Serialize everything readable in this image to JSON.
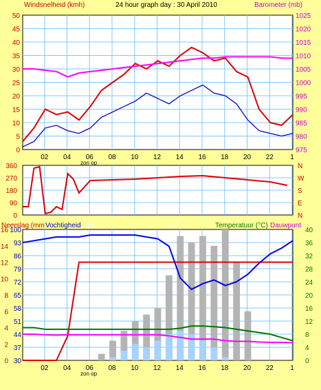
{
  "colors": {
    "background": "#ffff99",
    "plot": "#ffffff",
    "grid": "#7fc8ff",
    "wind_gust": "#dd0000",
    "wind_avg": "#0000cc",
    "barometer": "#ff00ff",
    "direction": "#dd0000",
    "humidity": "#0000ee",
    "rain": "#dd0000",
    "solar": "#b4b4b4",
    "uv": "#a6d2ff",
    "temperature": "#007700",
    "dewpoint": "#ff00ff",
    "label_red": "#cc0000",
    "label_blue": "#0000cc",
    "label_magenta": "#cc00cc",
    "label_green": "#007700"
  },
  "header": {
    "left": "Windsnelheid (kmh)",
    "title": "24 hour graph day : 30 April 2010",
    "right": "Barometer (mb)"
  },
  "sunrise_label": "zon op",
  "x_ticks": [
    "02",
    "04",
    "06",
    "08",
    "10",
    "12",
    "14",
    "16",
    "18",
    "20",
    "22",
    "1"
  ],
  "top_chart": {
    "y_left_ticks": [
      "50",
      "45",
      "40",
      "35",
      "30",
      "25",
      "20",
      "15",
      "10",
      "5",
      "0"
    ],
    "y_right_ticks": [
      "1025",
      "1020",
      "1015",
      "1010",
      "1005",
      "1000",
      "995",
      "990",
      "985",
      "980",
      "975"
    ]
  },
  "mid_chart": {
    "y_left_ticks": [
      "360",
      "270",
      "180",
      "90",
      "0"
    ],
    "y_right_ticks": [
      "N",
      "W",
      "S",
      "E",
      "N"
    ]
  },
  "bottom_chart": {
    "header_left": "Neerslag (mm",
    "header_humidity": "Vochtigheid",
    "header_solar": "olar",
    "header_uv": "UV",
    "header_temp": "Temperatuur (°C)",
    "header_dew": "Dauwpunt",
    "y_left_rain_ticks": [
      "16",
      "14",
      "12",
      "10",
      "8",
      "6",
      "4",
      "2",
      "0"
    ],
    "y_left_hum_ticks": [
      "100",
      "93",
      "86",
      "79",
      "72",
      "65",
      "58",
      "51",
      "44",
      "37",
      "30"
    ],
    "y_right_ticks": [
      "40",
      "36",
      "32",
      "28",
      "24",
      "20",
      "16",
      "12",
      "8",
      "4",
      "0"
    ]
  },
  "chart_data": [
    {
      "type": "line",
      "title": "24 hour graph day : 30 April 2010",
      "xlabel": "zon op",
      "ylabel": "Windsnelheid (kmh)",
      "ylabel_right": "Barometer (mb)",
      "x": [
        0,
        1,
        2,
        3,
        4,
        5,
        6,
        7,
        8,
        9,
        10,
        11,
        12,
        13,
        14,
        15,
        16,
        17,
        18,
        19,
        20,
        21,
        22,
        23,
        24
      ],
      "ylim": [
        0,
        50
      ],
      "ylim_right": [
        975,
        1025
      ],
      "series": [
        {
          "values": [
            3,
            8,
            15,
            13,
            14,
            11,
            16,
            22,
            25,
            28,
            32,
            30,
            33,
            31,
            35,
            38,
            36,
            33,
            34,
            29,
            27,
            15,
            10,
            9,
            13
          ]
        },
        {
          "values": [
            1,
            3,
            8,
            9,
            7,
            6,
            8,
            12,
            14,
            16,
            18,
            21,
            19,
            17,
            20,
            22,
            24,
            21,
            20,
            17,
            11,
            7,
            6,
            5,
            6
          ]
        },
        {
          "axis": "right",
          "values": [
            1005,
            1005,
            1004.5,
            1004,
            1002,
            1003.5,
            1004,
            1004.5,
            1005,
            1005.5,
            1006,
            1006.5,
            1007,
            1007.5,
            1008,
            1008.5,
            1009,
            1009,
            1009.5,
            1009.5,
            1009.5,
            1009.5,
            1009.5,
            1009,
            1009
          ]
        }
      ]
    },
    {
      "type": "line",
      "ylim": [
        0,
        360
      ],
      "x": [
        0,
        0.5,
        1,
        1.5,
        2,
        2.5,
        3,
        3.5,
        4,
        4.5,
        5,
        6,
        8,
        10,
        12,
        14,
        16,
        18,
        20,
        22,
        23.5
      ],
      "series": [
        {
          "values": [
            60,
            60,
            340,
            350,
            10,
            20,
            60,
            40,
            300,
            260,
            160,
            250,
            255,
            260,
            270,
            280,
            285,
            270,
            255,
            240,
            215
          ]
        }
      ]
    },
    {
      "type": "line",
      "x": [
        0,
        1,
        2,
        3,
        4,
        5,
        6,
        7,
        8,
        9,
        10,
        11,
        12,
        13,
        14,
        15,
        16,
        17,
        18,
        19,
        20,
        21,
        22,
        23,
        24
      ],
      "ylim": [
        30,
        100
      ],
      "ylim_right": [
        0,
        40
      ],
      "series": [
        {
          "values": [
            93,
            94,
            95,
            96,
            96,
            96,
            97,
            97,
            97,
            97,
            97,
            96,
            95,
            91,
            74,
            68,
            71,
            73,
            70,
            72,
            76,
            82,
            87,
            90,
            94
          ]
        },
        {
          "axis": "rain_mm",
          "values": [
            0,
            0,
            0,
            0,
            3,
            12,
            12,
            12,
            12,
            12,
            12,
            12,
            12,
            12,
            12,
            12,
            12,
            12,
            12,
            12,
            12,
            12,
            12,
            12,
            12
          ]
        },
        {
          "axis": "right",
          "values": [
            10,
            10,
            9.5,
            9.5,
            9.5,
            9.5,
            9.5,
            9.5,
            9.5,
            9.5,
            9.5,
            9.5,
            9.5,
            9.5,
            9.8,
            10.5,
            10.5,
            10.3,
            10,
            9.5,
            9,
            8.5,
            8,
            7,
            6
          ]
        },
        {
          "axis": "right",
          "values": [
            8,
            8,
            7.8,
            7.7,
            7.8,
            7.8,
            7.8,
            7.8,
            7.8,
            7.8,
            7.8,
            7.8,
            7.8,
            7.5,
            7,
            6.5,
            6.5,
            6.5,
            6,
            5.8,
            5.8,
            5.6,
            5.5,
            5.5,
            5.4
          ]
        },
        {
          "axis": "right",
          "values": [
            0,
            0,
            0,
            0,
            0,
            0,
            0,
            2,
            6,
            9,
            12,
            14,
            16,
            26,
            38,
            36,
            38,
            35,
            40,
            30,
            15,
            0,
            0,
            0,
            0
          ]
        },
        {
          "axis": "right",
          "values": [
            0,
            0,
            0,
            0,
            0,
            0,
            0,
            0,
            1,
            3,
            5,
            4,
            6,
            8,
            9,
            8,
            6,
            4,
            1,
            0,
            0,
            0,
            0,
            0,
            0
          ]
        }
      ]
    }
  ]
}
